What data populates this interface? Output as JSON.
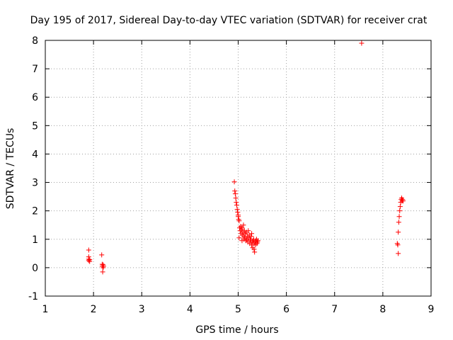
{
  "chart_data": {
    "type": "scatter",
    "title": "Day 195 of 2017, Sidereal Day-to-day VTEC variation (SDTVAR) for receiver crat",
    "xlabel": "GPS time / hours",
    "ylabel": "SDTVAR / TECUs",
    "xlim": [
      1,
      9
    ],
    "ylim": [
      -1,
      8
    ],
    "xticks": [
      "1",
      "2",
      "3",
      "4",
      "5",
      "6",
      "7",
      "8",
      "9"
    ],
    "yticks": [
      "-1",
      "0",
      "1",
      "2",
      "3",
      "4",
      "5",
      "6",
      "7",
      "8"
    ],
    "grid": true,
    "marker": "+",
    "series": [
      {
        "name": "SDTVAR",
        "color": "#ff0000",
        "x": [
          1.9,
          1.9,
          1.9,
          1.9,
          1.92,
          1.92,
          2.17,
          2.18,
          2.18,
          2.19,
          2.2,
          2.2,
          2.21,
          4.92,
          4.93,
          4.94,
          4.95,
          4.96,
          4.97,
          4.98,
          4.99,
          5.0,
          5.0,
          5.01,
          5.02,
          5.02,
          5.03,
          5.04,
          5.05,
          5.06,
          5.07,
          5.08,
          5.09,
          5.1,
          5.11,
          5.12,
          5.13,
          5.14,
          5.15,
          5.16,
          5.17,
          5.18,
          5.19,
          5.2,
          5.21,
          5.22,
          5.23,
          5.24,
          5.25,
          5.26,
          5.27,
          5.28,
          5.29,
          5.3,
          5.31,
          5.32,
          5.33,
          5.34,
          5.35,
          5.36,
          5.37,
          5.38,
          5.39,
          5.4,
          5.41,
          5.08,
          5.12,
          5.28,
          5.33,
          7.56,
          8.3,
          8.31,
          8.32,
          8.32,
          8.33,
          8.34,
          8.35,
          8.36,
          8.37,
          8.38,
          8.39,
          8.4,
          8.41,
          8.42
        ],
        "y": [
          0.62,
          0.38,
          0.3,
          0.25,
          0.28,
          0.22,
          0.45,
          0.12,
          0.05,
          -0.15,
          0.1,
          0.0,
          0.05,
          3.02,
          2.7,
          2.6,
          2.45,
          2.3,
          2.2,
          2.05,
          1.95,
          1.85,
          1.8,
          1.7,
          1.65,
          1.05,
          1.4,
          1.3,
          1.45,
          1.2,
          1.35,
          1.4,
          1.15,
          1.25,
          1.5,
          1.1,
          1.3,
          1.05,
          1.2,
          0.95,
          1.25,
          1.0,
          1.1,
          0.9,
          1.3,
          1.05,
          1.15,
          0.85,
          1.0,
          0.95,
          1.1,
          0.8,
          0.9,
          0.7,
          0.95,
          1.0,
          0.85,
          0.55,
          0.9,
          0.8,
          0.95,
          1.0,
          0.85,
          0.9,
          0.95,
          0.95,
          1.0,
          1.2,
          0.65,
          7.9,
          0.85,
          0.8,
          0.5,
          1.25,
          1.6,
          1.8,
          2.0,
          2.15,
          2.3,
          2.4,
          2.45,
          2.35,
          2.4,
          2.35
        ]
      }
    ]
  }
}
